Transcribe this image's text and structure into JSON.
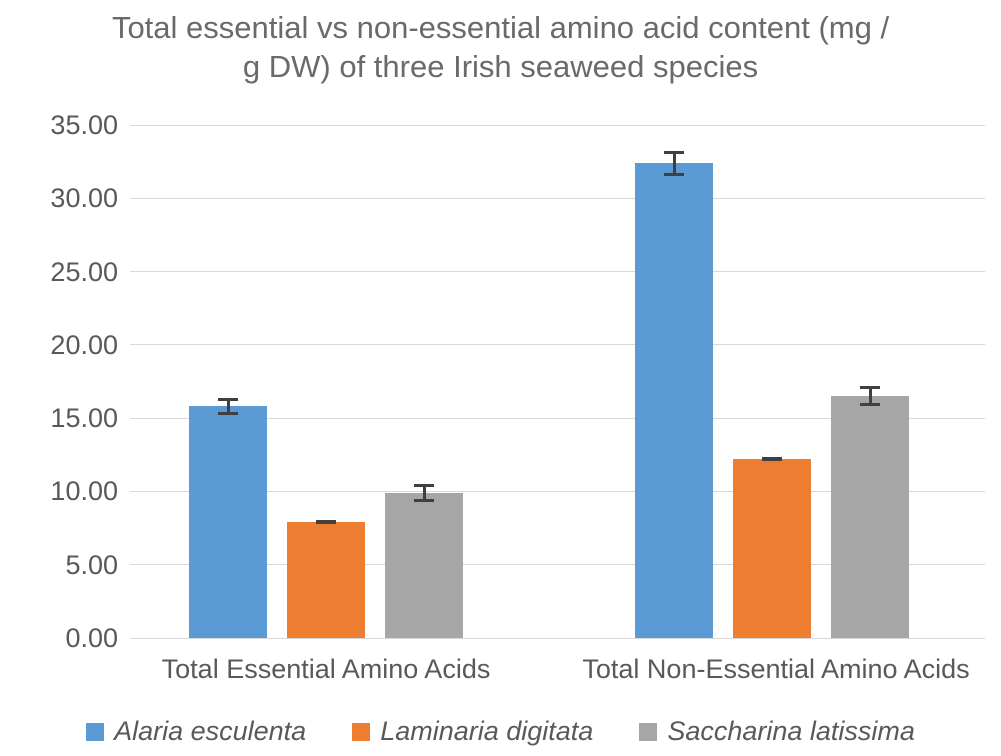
{
  "chart_data": {
    "type": "bar",
    "title": "Total essential vs non-essential amino acid content (mg / g DW) of three Irish seaweed species",
    "title_lines": [
      "Total essential vs non-essential amino acid content (mg /",
      "g DW) of three Irish seaweed species"
    ],
    "categories": [
      "Total Essential Amino Acids",
      "Total Non-Essential Amino Acids"
    ],
    "series": [
      {
        "name": "Alaria esculenta",
        "color": "#5b9bd5",
        "values": [
          15.8,
          32.4
        ],
        "errors": [
          0.6,
          0.85
        ]
      },
      {
        "name": "Laminaria digitata",
        "color": "#ed7d31",
        "values": [
          7.9,
          12.2
        ],
        "errors": [
          0.15,
          0.15
        ]
      },
      {
        "name": "Saccharina latissima",
        "color": "#a6a6a6",
        "values": [
          9.9,
          16.5
        ],
        "errors": [
          0.6,
          0.7
        ]
      }
    ],
    "ylim": [
      0,
      35
    ],
    "ytick_step": 5,
    "ytick_labels": [
      "0.00",
      "5.00",
      "10.00",
      "15.00",
      "20.00",
      "25.00",
      "30.00",
      "35.00"
    ],
    "xlabel": "",
    "ylabel": "",
    "grid": true,
    "legend_position": "bottom",
    "colors": {
      "gridline": "#d9d9d9",
      "error_bar": "#404040",
      "text": "#595959",
      "title_text": "#6a6a6a"
    }
  }
}
